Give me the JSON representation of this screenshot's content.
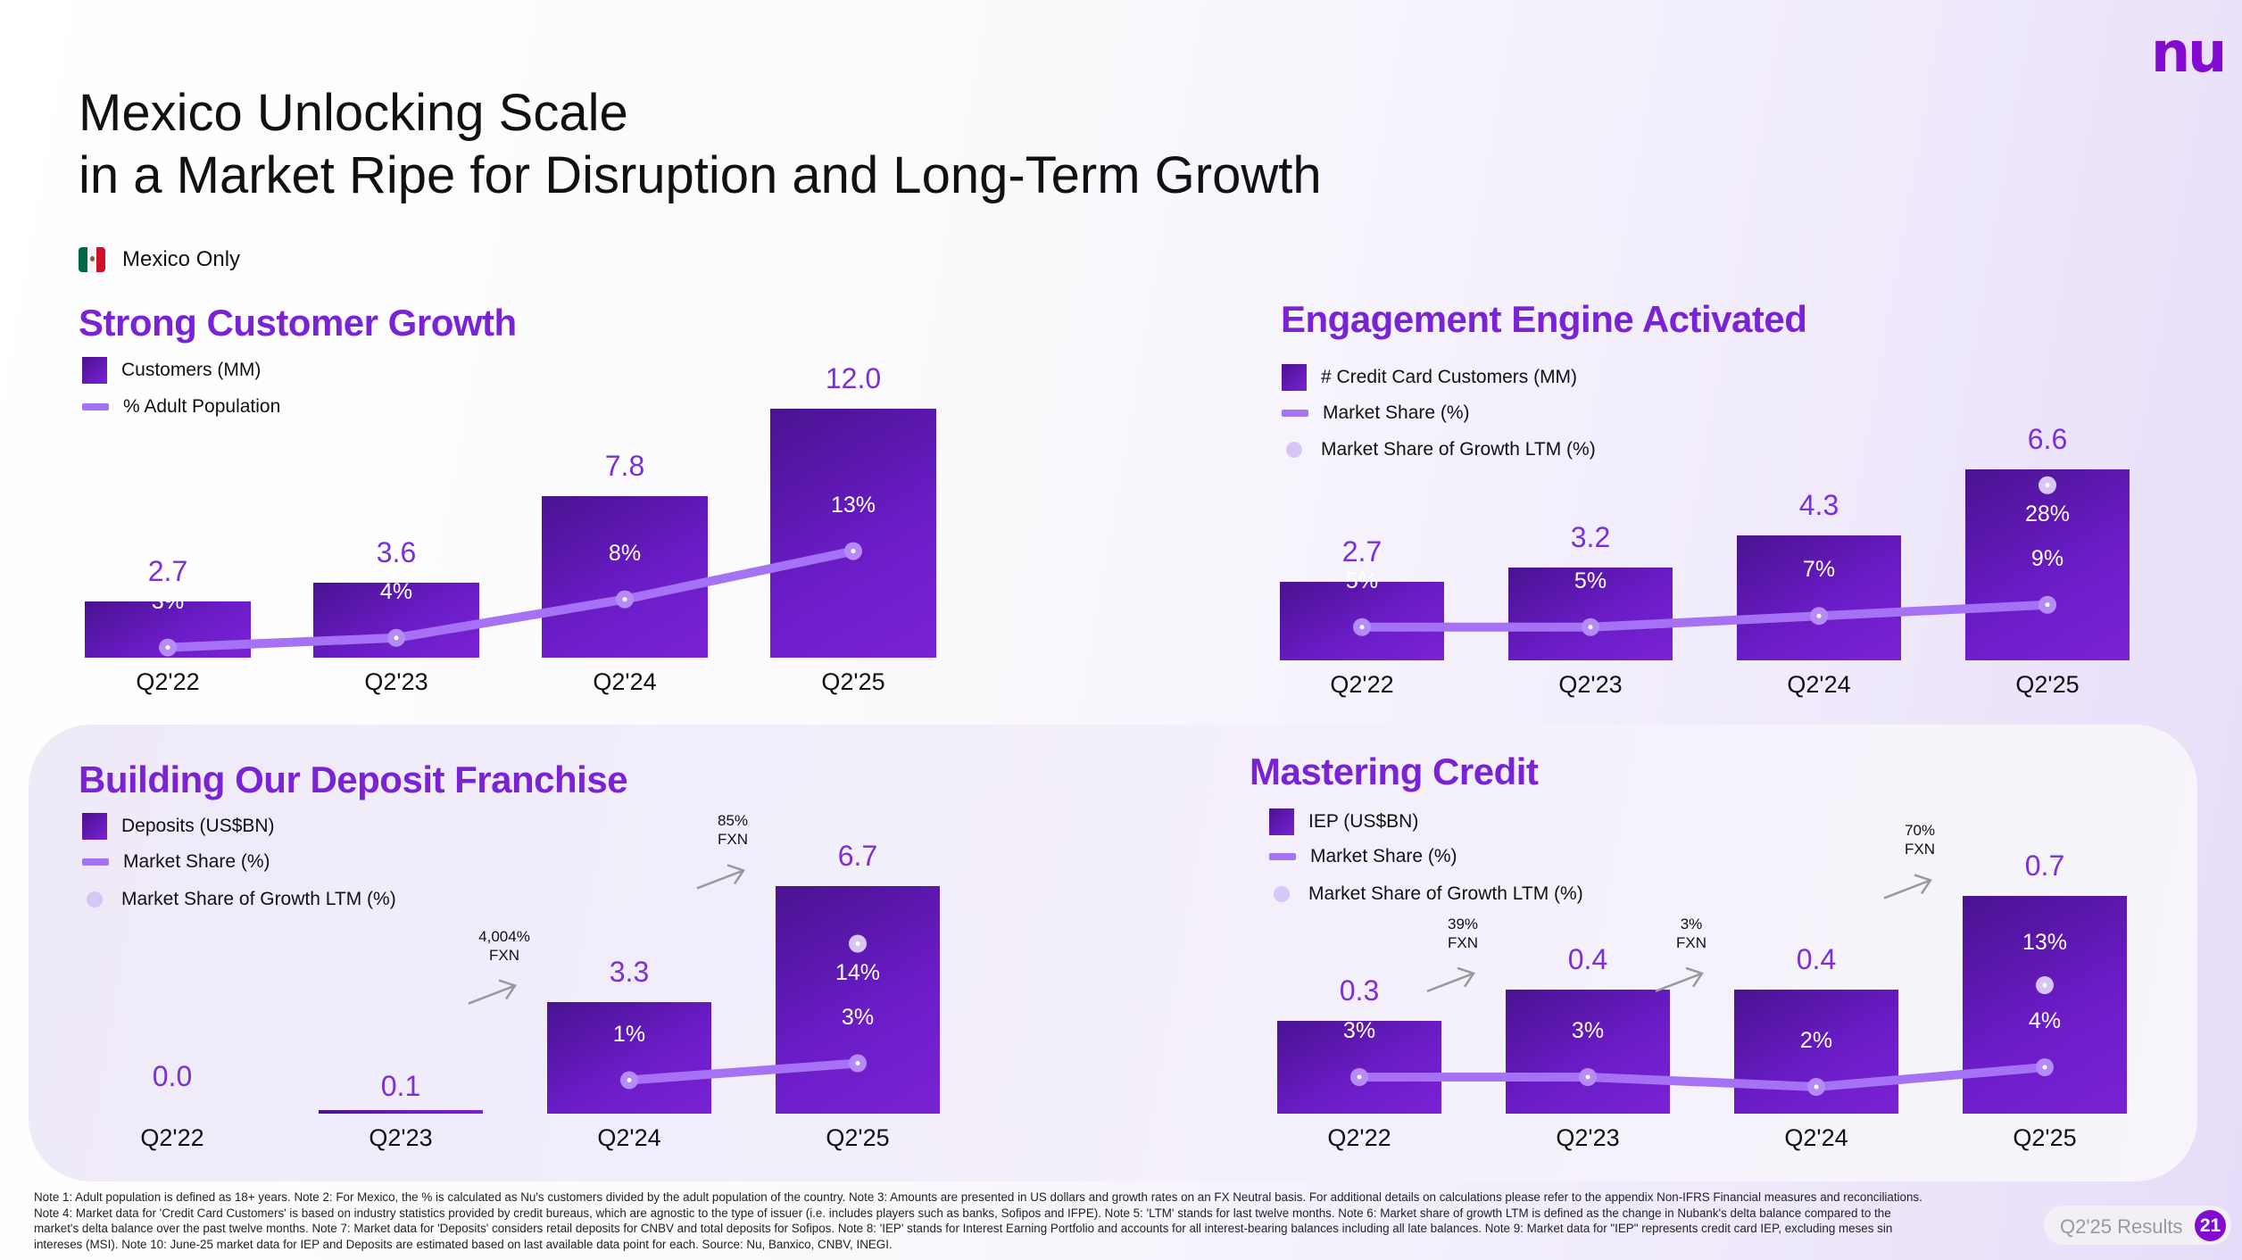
{
  "header": {
    "logo": "nu",
    "title_line1": "Mexico Unlocking Scale",
    "title_line2": "in a Market Ripe for Disruption and Long-Term Growth",
    "scope_label": "Mexico Only",
    "flag_icon": "mexico-flag-icon"
  },
  "colors": {
    "accent": "#820ad1",
    "bar_dark": "#4a1290",
    "bar_light": "#7a22d6",
    "line": "#a672f5",
    "growth_dot": "#d7c7f7",
    "value_label": "#7b2fd8"
  },
  "chart_data": [
    {
      "type": "bar",
      "title": "Strong Customer Growth",
      "categories": [
        "Q2'22",
        "Q2'23",
        "Q2'24",
        "Q2'25"
      ],
      "legend": [
        "Customers (MM)",
        "% Adult Population"
      ],
      "series": [
        {
          "name": "Customers (MM)",
          "type": "bar",
          "values": [
            2.7,
            3.6,
            7.8,
            12.0
          ],
          "labels": [
            "2.7",
            "3.6",
            "7.8",
            "12.0"
          ]
        },
        {
          "name": "% Adult Population",
          "type": "line",
          "values": [
            3,
            4,
            8,
            13
          ],
          "labels": [
            "3%",
            "4%",
            "8%",
            "13%"
          ]
        }
      ]
    },
    {
      "type": "bar",
      "title": "Engagement Engine Activated",
      "categories": [
        "Q2'22",
        "Q2'23",
        "Q2'24",
        "Q2'25"
      ],
      "legend": [
        "# Credit Card Customers (MM)",
        "Market Share (%)",
        "Market Share of Growth LTM (%)"
      ],
      "series": [
        {
          "name": "# Credit Card Customers (MM)",
          "type": "bar",
          "values": [
            2.7,
            3.2,
            4.3,
            6.6
          ],
          "labels": [
            "2.7",
            "3.2",
            "4.3",
            "6.6"
          ]
        },
        {
          "name": "Market Share (%)",
          "type": "line",
          "values": [
            5,
            5,
            7,
            9
          ],
          "labels": [
            "5%",
            "5%",
            "7%",
            "9%"
          ]
        },
        {
          "name": "Market Share of Growth LTM (%)",
          "type": "scatter",
          "values": [
            null,
            null,
            null,
            28
          ],
          "labels": [
            "",
            "",
            "",
            "28%"
          ]
        }
      ]
    },
    {
      "type": "bar",
      "title": "Building Our Deposit Franchise",
      "categories": [
        "Q2'22",
        "Q2'23",
        "Q2'24",
        "Q2'25"
      ],
      "legend": [
        "Deposits (US$BN)",
        "Market Share (%)",
        "Market Share of Growth LTM (%)"
      ],
      "series": [
        {
          "name": "Deposits (US$BN)",
          "type": "bar",
          "values": [
            0.0,
            0.1,
            3.3,
            6.7
          ],
          "labels": [
            "0.0",
            "0.1",
            "3.3",
            "6.7"
          ]
        },
        {
          "name": "Market Share (%)",
          "type": "line",
          "values": [
            null,
            null,
            1,
            3
          ],
          "labels": [
            "",
            "",
            "1%",
            "3%"
          ]
        },
        {
          "name": "Market Share of Growth LTM (%)",
          "type": "scatter",
          "values": [
            null,
            null,
            null,
            14
          ],
          "labels": [
            "",
            "",
            "",
            "14%"
          ]
        }
      ],
      "annotations": [
        {
          "between": [
            "Q2'23",
            "Q2'24"
          ],
          "line1": "4,004%",
          "line2": "FXN"
        },
        {
          "between": [
            "Q2'24",
            "Q2'25"
          ],
          "line1": "85%",
          "line2": "FXN"
        }
      ]
    },
    {
      "type": "bar",
      "title": "Mastering Credit",
      "categories": [
        "Q2'22",
        "Q2'23",
        "Q2'24",
        "Q2'25"
      ],
      "legend": [
        "IEP (US$BN)",
        "Market Share (%)",
        "Market Share of Growth LTM (%)"
      ],
      "series": [
        {
          "name": "IEP (US$BN)",
          "type": "bar",
          "values": [
            0.3,
            0.4,
            0.4,
            0.7
          ],
          "labels": [
            "0.3",
            "0.4",
            "0.4",
            "0.7"
          ]
        },
        {
          "name": "Market Share (%)",
          "type": "line",
          "values": [
            3,
            3,
            2,
            4
          ],
          "labels": [
            "3%",
            "3%",
            "2%",
            "4%"
          ]
        },
        {
          "name": "Market Share of Growth LTM (%)",
          "type": "scatter",
          "values": [
            null,
            null,
            null,
            13
          ],
          "labels": [
            "",
            "",
            "",
            "13%"
          ]
        }
      ],
      "annotations": [
        {
          "between": [
            "Q2'22",
            "Q2'23"
          ],
          "line1": "39%",
          "line2": "FXN"
        },
        {
          "between": [
            "Q2'23",
            "Q2'24"
          ],
          "line1": "3%",
          "line2": "FXN"
        },
        {
          "between": [
            "Q2'24",
            "Q2'25"
          ],
          "line1": "70%",
          "line2": "FXN"
        }
      ]
    }
  ],
  "footer": {
    "notes": "Note 1: Adult population is defined as 18+ years. Note 2: For Mexico, the % is calculated as Nu's customers divided by the adult population of the country. Note 3: Amounts are presented in US dollars and growth rates on an FX Neutral basis. For additional details on calculations please refer to the appendix Non-IFRS Financial measures and reconciliations. Note 4: Market data for 'Credit Card Customers' is based on industry statistics provided by credit bureaus, which are agnostic to the type of issuer (i.e. includes players such as banks, Sofipos and IFPE). Note 5: 'LTM' stands for last twelve months. Note 6: Market share of growth LTM is defined as the change in Nubank's delta balance compared to the market's delta balance over the past twelve months. Note 7: Market data for 'Deposits' considers retail deposits for CNBV and total deposits for Sofipos. Note 8: 'IEP' stands for Interest Earning Portfolio and accounts for all interest-bearing balances including all late balances. Note 9: Market data for \"IEP\" represents credit card IEP, excluding meses sin intereses (MSI). Note 10: June-25 market data for IEP and Deposits are estimated based on last available data point for each. Source: Nu, Banxico, CNBV, INEGI.",
    "badge_label": "Q2'25 Results",
    "page_number": "21"
  }
}
